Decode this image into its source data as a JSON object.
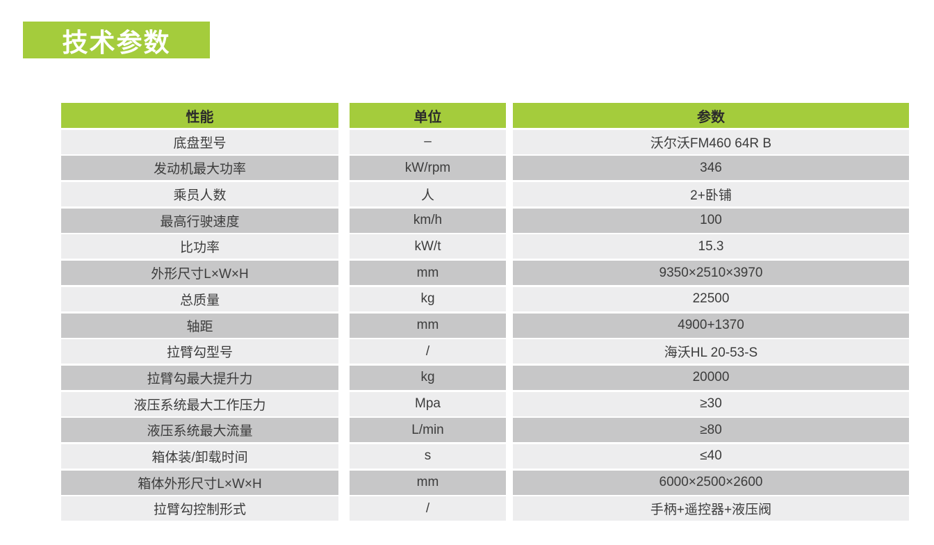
{
  "page": {
    "title_badge": "技术参数"
  },
  "colors": {
    "accent_green": "#a4cc3c",
    "badge_text": "#ffffff",
    "header_text": "#2b2b2b",
    "cell_text": "#3c3c3c",
    "row_light": "#ededee",
    "row_dark": "#c7c7c8",
    "page_bg": "#ffffff"
  },
  "table": {
    "columns": [
      "性能",
      "单位",
      "参数"
    ],
    "rows": [
      {
        "name": "底盘型号",
        "unit": "–",
        "value": "沃尔沃FM460 64R B"
      },
      {
        "name": "发动机最大功率",
        "unit": "kW/rpm",
        "value": "346"
      },
      {
        "name": "乘员人数",
        "unit": "人",
        "value": "2+卧铺"
      },
      {
        "name": "最高行驶速度",
        "unit": "km/h",
        "value": "100"
      },
      {
        "name": "比功率",
        "unit": "kW/t",
        "value": "15.3"
      },
      {
        "name": "外形尺寸L×W×H",
        "unit": "mm",
        "value": "9350×2510×3970"
      },
      {
        "name": "总质量",
        "unit": "kg",
        "value": "22500"
      },
      {
        "name": "轴距",
        "unit": "mm",
        "value": "4900+1370"
      },
      {
        "name": "拉臂勾型号",
        "unit": "/",
        "value": "海沃HL 20-53-S"
      },
      {
        "name": "拉臂勾最大提升力",
        "unit": "kg",
        "value": "20000"
      },
      {
        "name": "液压系统最大工作压力",
        "unit": "Mpa",
        "value": "≥30"
      },
      {
        "name": "液压系统最大流量",
        "unit": "L/min",
        "value": "≥80"
      },
      {
        "name": "箱体装/卸载时间",
        "unit": "s",
        "value": "≤40"
      },
      {
        "name": "箱体外形尺寸L×W×H",
        "unit": "mm",
        "value": "6000×2500×2600"
      },
      {
        "name": "拉臂勾控制形式",
        "unit": "/",
        "value": "手柄+遥控器+液压阀"
      }
    ]
  }
}
